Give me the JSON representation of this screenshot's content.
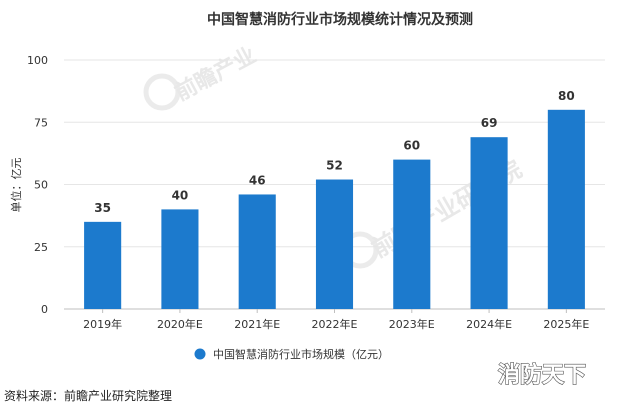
{
  "chart_data": {
    "type": "bar",
    "title": "中国智慧消防行业市场规模统计情况及预测",
    "ylabel": "单位：亿元",
    "categories": [
      "2019年",
      "2020年E",
      "2021年E",
      "2022年E",
      "2023年E",
      "2024年E",
      "2025年E"
    ],
    "series": [
      {
        "name": "中国智慧消防行业市场规模（亿元）",
        "values": [
          35,
          40,
          46,
          52,
          60,
          69,
          80
        ]
      }
    ],
    "ylim": [
      0,
      100
    ],
    "yticks": [
      0,
      25,
      50,
      75,
      100
    ],
    "grid": true,
    "legend_position": "bottom",
    "bar_color": "#1c7acd"
  },
  "source_note": "资料来源：前瞻产业研究院整理",
  "watermarks": [
    "前瞻产业",
    "前瞻产业研究院"
  ],
  "brand_stamp": "消防天下"
}
